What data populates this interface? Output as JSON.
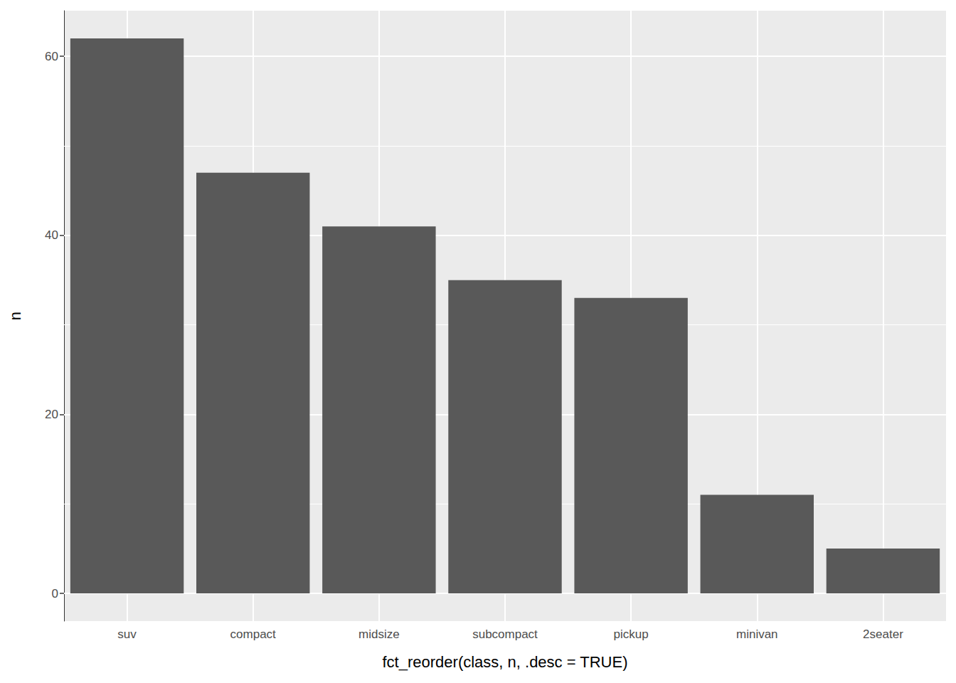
{
  "chart_data": {
    "type": "bar",
    "xlabel": "fct_reorder(class, n, .desc = TRUE)",
    "ylabel": "n",
    "categories": [
      "suv",
      "compact",
      "midsize",
      "subcompact",
      "pickup",
      "minivan",
      "2seater"
    ],
    "values": [
      62,
      47,
      41,
      35,
      33,
      11,
      5
    ],
    "color": "#595959",
    "ylim": [
      -3.1,
      65.1
    ],
    "yticks": [
      0,
      20,
      40,
      60
    ],
    "grid": true
  }
}
